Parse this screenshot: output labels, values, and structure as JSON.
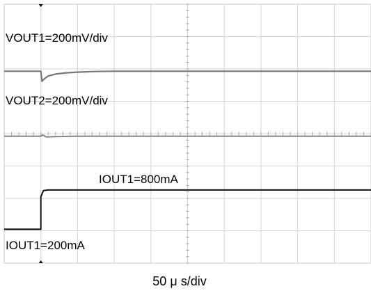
{
  "chart_data": {
    "type": "line",
    "grid": true,
    "grid_divisions": {
      "x": 10,
      "y": 8
    },
    "xlabel": "50 μ s/div",
    "x_unit": "div",
    "xlim": [
      0,
      10
    ],
    "annotations": [
      "VOUT1=200mV/div",
      "VOUT2=200mV/div",
      "IOUT1=800mA",
      "IOUT1=200mA"
    ],
    "series": [
      {
        "name": "VOUT1",
        "color": "#777777",
        "x": [
          0,
          1.0,
          1.03,
          1.1,
          1.2,
          1.4,
          1.7,
          2.0,
          2.5,
          3.0,
          4.0,
          5.0,
          6.0,
          8.0,
          10.0
        ],
        "y": [
          5.93,
          5.93,
          5.62,
          5.7,
          5.78,
          5.84,
          5.88,
          5.9,
          5.92,
          5.93,
          5.93,
          5.93,
          5.93,
          5.93,
          5.93
        ]
      },
      {
        "name": "VOUT2",
        "color": "#8a8a8a",
        "x": [
          0,
          1.0,
          1.05,
          1.15,
          1.4,
          2.0,
          4.0,
          6.0,
          8.0,
          10.0
        ],
        "y": [
          3.92,
          3.92,
          3.96,
          3.9,
          3.91,
          3.92,
          3.92,
          3.92,
          3.92,
          3.92
        ]
      },
      {
        "name": "IOUT1",
        "color": "#111111",
        "x": [
          0,
          1.0,
          1.0,
          1.07,
          1.2,
          2.0,
          4.0,
          6.0,
          8.0,
          10.0
        ],
        "y": [
          1.05,
          1.05,
          2.05,
          2.24,
          2.26,
          2.26,
          2.26,
          2.26,
          2.26,
          2.26
        ]
      }
    ],
    "trigger_marker_x": 1.0
  }
}
